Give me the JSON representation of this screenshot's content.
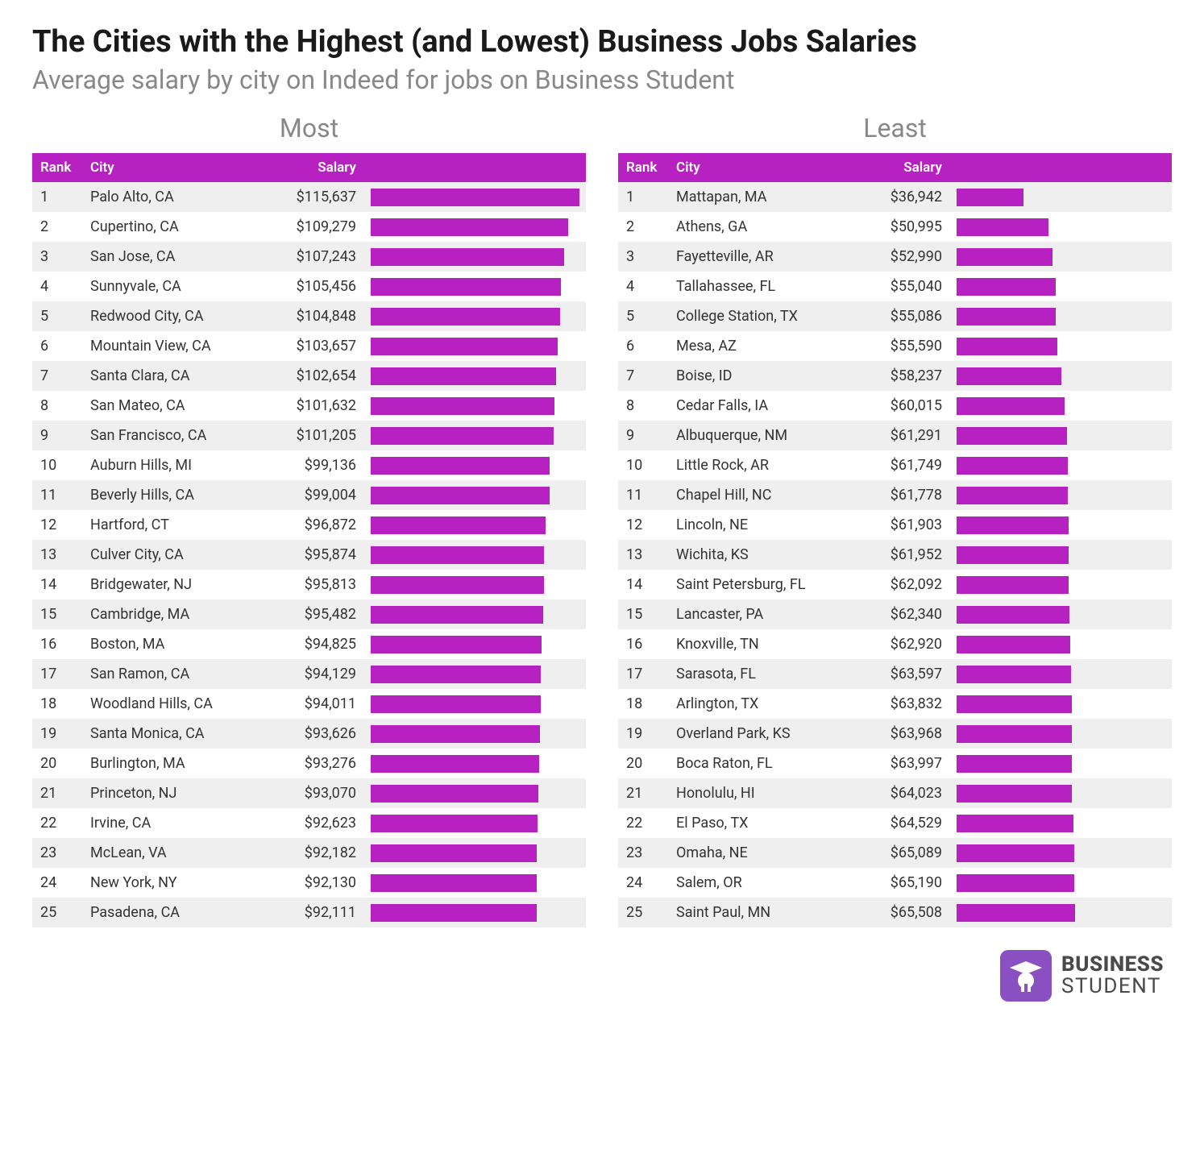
{
  "title": "The Cities with the Highest (and Lowest) Business Jobs Salaries",
  "subtitle": "Average salary by city on Indeed for jobs on Business Student",
  "colors": {
    "accent": "#b721c2",
    "header_bg": "#b721c2",
    "header_text": "#ffffff",
    "row_odd_bg": "#efefef",
    "row_even_bg": "#ffffff",
    "text": "#333333",
    "subtitle_text": "#888888",
    "logo_bg": "#8a4fc0"
  },
  "bar_max_value": 115637,
  "columns": {
    "rank": "Rank",
    "city": "City",
    "salary": "Salary"
  },
  "panels": {
    "most": {
      "label": "Most",
      "rows": [
        {
          "rank": 1,
          "city": "Palo Alto, CA",
          "salary_num": 115637,
          "salary": "$115,637"
        },
        {
          "rank": 2,
          "city": "Cupertino, CA",
          "salary_num": 109279,
          "salary": "$109,279"
        },
        {
          "rank": 3,
          "city": "San Jose, CA",
          "salary_num": 107243,
          "salary": "$107,243"
        },
        {
          "rank": 4,
          "city": "Sunnyvale, CA",
          "salary_num": 105456,
          "salary": "$105,456"
        },
        {
          "rank": 5,
          "city": "Redwood City, CA",
          "salary_num": 104848,
          "salary": "$104,848"
        },
        {
          "rank": 6,
          "city": "Mountain View, CA",
          "salary_num": 103657,
          "salary": "$103,657"
        },
        {
          "rank": 7,
          "city": "Santa Clara, CA",
          "salary_num": 102654,
          "salary": "$102,654"
        },
        {
          "rank": 8,
          "city": "San Mateo, CA",
          "salary_num": 101632,
          "salary": "$101,632"
        },
        {
          "rank": 9,
          "city": "San Francisco, CA",
          "salary_num": 101205,
          "salary": "$101,205"
        },
        {
          "rank": 10,
          "city": "Auburn Hills, MI",
          "salary_num": 99136,
          "salary": "$99,136"
        },
        {
          "rank": 11,
          "city": "Beverly Hills, CA",
          "salary_num": 99004,
          "salary": "$99,004"
        },
        {
          "rank": 12,
          "city": "Hartford, CT",
          "salary_num": 96872,
          "salary": "$96,872"
        },
        {
          "rank": 13,
          "city": "Culver City, CA",
          "salary_num": 95874,
          "salary": "$95,874"
        },
        {
          "rank": 14,
          "city": "Bridgewater, NJ",
          "salary_num": 95813,
          "salary": "$95,813"
        },
        {
          "rank": 15,
          "city": "Cambridge, MA",
          "salary_num": 95482,
          "salary": "$95,482"
        },
        {
          "rank": 16,
          "city": "Boston, MA",
          "salary_num": 94825,
          "salary": "$94,825"
        },
        {
          "rank": 17,
          "city": "San Ramon, CA",
          "salary_num": 94129,
          "salary": "$94,129"
        },
        {
          "rank": 18,
          "city": "Woodland Hills, CA",
          "salary_num": 94011,
          "salary": "$94,011"
        },
        {
          "rank": 19,
          "city": "Santa Monica, CA",
          "salary_num": 93626,
          "salary": "$93,626"
        },
        {
          "rank": 20,
          "city": "Burlington, MA",
          "salary_num": 93276,
          "salary": "$93,276"
        },
        {
          "rank": 21,
          "city": "Princeton, NJ",
          "salary_num": 93070,
          "salary": "$93,070"
        },
        {
          "rank": 22,
          "city": "Irvine, CA",
          "salary_num": 92623,
          "salary": "$92,623"
        },
        {
          "rank": 23,
          "city": "McLean, VA",
          "salary_num": 92182,
          "salary": "$92,182"
        },
        {
          "rank": 24,
          "city": "New York, NY",
          "salary_num": 92130,
          "salary": "$92,130"
        },
        {
          "rank": 25,
          "city": "Pasadena, CA",
          "salary_num": 92111,
          "salary": "$92,111"
        }
      ]
    },
    "least": {
      "label": "Least",
      "rows": [
        {
          "rank": 1,
          "city": "Mattapan, MA",
          "salary_num": 36942,
          "salary": "$36,942"
        },
        {
          "rank": 2,
          "city": "Athens, GA",
          "salary_num": 50995,
          "salary": "$50,995"
        },
        {
          "rank": 3,
          "city": "Fayetteville, AR",
          "salary_num": 52990,
          "salary": "$52,990"
        },
        {
          "rank": 4,
          "city": "Tallahassee, FL",
          "salary_num": 55040,
          "salary": "$55,040"
        },
        {
          "rank": 5,
          "city": "College Station, TX",
          "salary_num": 55086,
          "salary": "$55,086"
        },
        {
          "rank": 6,
          "city": "Mesa, AZ",
          "salary_num": 55590,
          "salary": "$55,590"
        },
        {
          "rank": 7,
          "city": "Boise, ID",
          "salary_num": 58237,
          "salary": "$58,237"
        },
        {
          "rank": 8,
          "city": "Cedar Falls, IA",
          "salary_num": 60015,
          "salary": "$60,015"
        },
        {
          "rank": 9,
          "city": "Albuquerque, NM",
          "salary_num": 61291,
          "salary": "$61,291"
        },
        {
          "rank": 10,
          "city": "Little Rock, AR",
          "salary_num": 61749,
          "salary": "$61,749"
        },
        {
          "rank": 11,
          "city": "Chapel Hill, NC",
          "salary_num": 61778,
          "salary": "$61,778"
        },
        {
          "rank": 12,
          "city": "Lincoln, NE",
          "salary_num": 61903,
          "salary": "$61,903"
        },
        {
          "rank": 13,
          "city": "Wichita, KS",
          "salary_num": 61952,
          "salary": "$61,952"
        },
        {
          "rank": 14,
          "city": "Saint Petersburg, FL",
          "salary_num": 62092,
          "salary": "$62,092"
        },
        {
          "rank": 15,
          "city": "Lancaster, PA",
          "salary_num": 62340,
          "salary": "$62,340"
        },
        {
          "rank": 16,
          "city": "Knoxville, TN",
          "salary_num": 62920,
          "salary": "$62,920"
        },
        {
          "rank": 17,
          "city": "Sarasota, FL",
          "salary_num": 63597,
          "salary": "$63,597"
        },
        {
          "rank": 18,
          "city": "Arlington, TX",
          "salary_num": 63832,
          "salary": "$63,832"
        },
        {
          "rank": 19,
          "city": "Overland Park, KS",
          "salary_num": 63968,
          "salary": "$63,968"
        },
        {
          "rank": 20,
          "city": "Boca Raton, FL",
          "salary_num": 63997,
          "salary": "$63,997"
        },
        {
          "rank": 21,
          "city": "Honolulu, HI",
          "salary_num": 64023,
          "salary": "$64,023"
        },
        {
          "rank": 22,
          "city": "El Paso, TX",
          "salary_num": 64529,
          "salary": "$64,529"
        },
        {
          "rank": 23,
          "city": "Omaha, NE",
          "salary_num": 65089,
          "salary": "$65,089"
        },
        {
          "rank": 24,
          "city": "Salem, OR",
          "salary_num": 65190,
          "salary": "$65,190"
        },
        {
          "rank": 25,
          "city": "Saint Paul, MN",
          "salary_num": 65508,
          "salary": "$65,508"
        }
      ]
    }
  },
  "logo": {
    "line1": "BUSINESS",
    "line2": "STUDENT"
  }
}
